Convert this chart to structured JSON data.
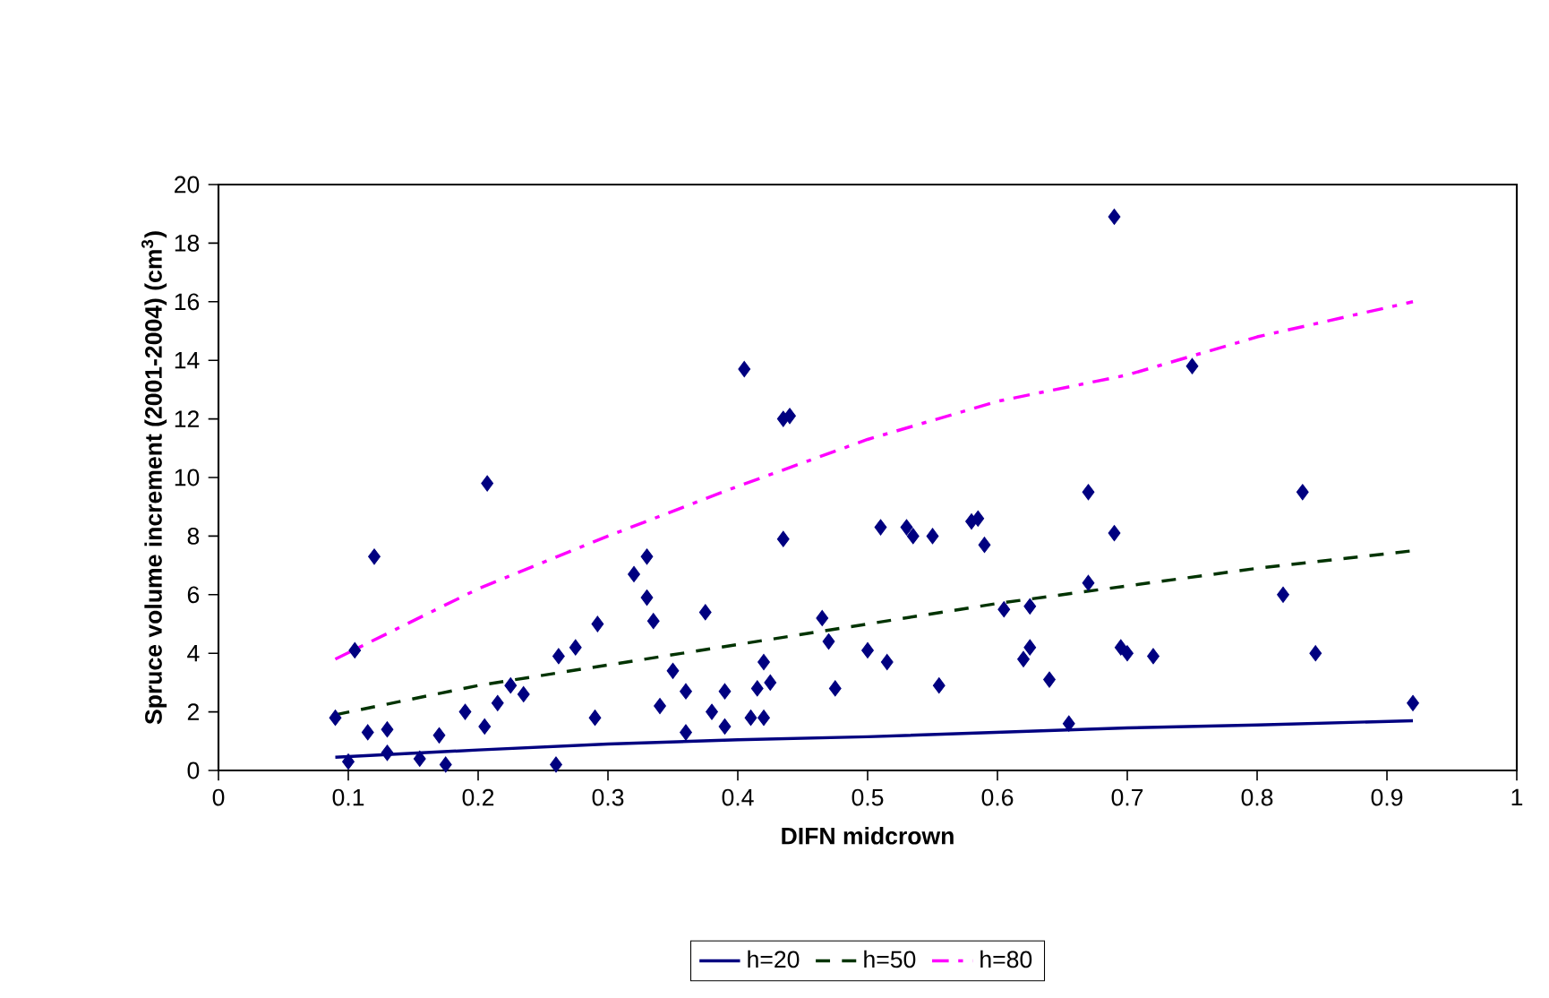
{
  "chart_data": {
    "type": "scatter",
    "xlabel": "DIFN midcrown",
    "ylabel": "Spruce volume increment (2001-2004) (cm$^{3}$)",
    "xlim": [
      0,
      1
    ],
    "xticks": [
      0,
      0.1,
      0.2,
      0.3,
      0.4,
      0.5,
      0.6,
      0.7,
      0.8,
      0.9,
      1
    ],
    "ylim": [
      0,
      20
    ],
    "yticks": [
      0,
      2,
      4,
      6,
      8,
      10,
      12,
      14,
      16,
      18,
      20
    ],
    "grid": false,
    "legend": "bottom",
    "series": [
      {
        "marker": "diamond",
        "color": "#000080",
        "x": [
          0.09,
          0.1,
          0.105,
          0.115,
          0.12,
          0.13,
          0.13,
          0.155,
          0.17,
          0.175,
          0.19,
          0.205,
          0.207,
          0.215,
          0.225,
          0.235,
          0.26,
          0.262,
          0.275,
          0.29,
          0.292,
          0.32,
          0.33,
          0.33,
          0.335,
          0.34,
          0.35,
          0.36,
          0.36,
          0.375,
          0.38,
          0.39,
          0.39,
          0.405,
          0.41,
          0.415,
          0.42,
          0.42,
          0.425,
          0.435,
          0.435,
          0.44,
          0.465,
          0.47,
          0.475,
          0.5,
          0.51,
          0.515,
          0.53,
          0.535,
          0.55,
          0.555,
          0.58,
          0.585,
          0.59,
          0.605,
          0.62,
          0.625,
          0.625,
          0.64,
          0.655,
          0.67,
          0.67,
          0.69,
          0.69,
          0.695,
          0.7,
          0.72,
          0.75,
          0.82,
          0.835,
          0.845,
          0.92
        ],
        "values": [
          1.8,
          0.3,
          4.1,
          1.3,
          7.3,
          0.6,
          1.4,
          0.4,
          1.2,
          0.2,
          2.0,
          1.5,
          9.8,
          2.3,
          2.9,
          2.6,
          0.2,
          3.9,
          4.2,
          1.8,
          5.0,
          6.7,
          7.3,
          5.9,
          5.1,
          2.2,
          3.4,
          1.3,
          2.7,
          5.4,
          2.0,
          1.5,
          2.7,
          13.7,
          1.8,
          2.8,
          1.8,
          3.7,
          3.0,
          7.9,
          12.0,
          12.1,
          5.2,
          4.4,
          2.8,
          4.1,
          8.3,
          3.7,
          8.3,
          8.0,
          8.0,
          2.9,
          8.5,
          8.6,
          7.7,
          5.5,
          3.8,
          4.2,
          5.6,
          3.1,
          1.6,
          9.5,
          6.4,
          18.9,
          8.1,
          4.2,
          4.0,
          3.9,
          13.8,
          6.0,
          9.5,
          4.0,
          2.3
        ]
      },
      {
        "type": "line",
        "name": "h=20",
        "color": "#000080",
        "line_style": "solid",
        "marker": "none",
        "x": [
          0.09,
          0.2,
          0.3,
          0.4,
          0.5,
          0.6,
          0.7,
          0.8,
          0.92
        ],
        "values": [
          0.45,
          0.7,
          0.9,
          1.05,
          1.15,
          1.3,
          1.45,
          1.55,
          1.7
        ]
      },
      {
        "type": "line",
        "name": "h=50",
        "color": "#003300",
        "line_style": "dashed",
        "marker": "none",
        "x": [
          0.09,
          0.2,
          0.3,
          0.4,
          0.5,
          0.6,
          0.7,
          0.8,
          0.92
        ],
        "values": [
          1.9,
          2.9,
          3.6,
          4.3,
          5.0,
          5.7,
          6.3,
          6.9,
          7.5
        ]
      },
      {
        "type": "line",
        "name": "h=80",
        "color": "#ff00ff",
        "line_style": "dashdot",
        "marker": "none",
        "x": [
          0.09,
          0.2,
          0.3,
          0.4,
          0.5,
          0.6,
          0.7,
          0.8,
          0.92
        ],
        "values": [
          3.8,
          6.2,
          8.0,
          9.7,
          11.3,
          12.6,
          13.5,
          14.8,
          16.0
        ]
      }
    ]
  }
}
